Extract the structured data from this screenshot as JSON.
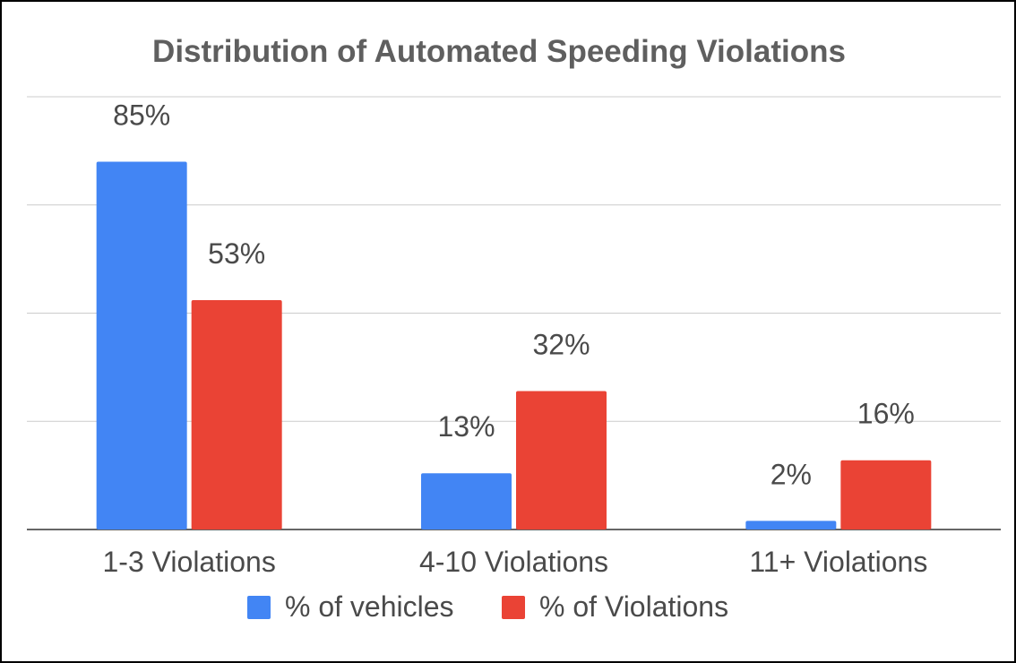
{
  "chart_data": {
    "type": "bar",
    "title": "Distribution of Automated Speeding Violations",
    "xlabel": "",
    "ylabel": "",
    "categories": [
      "1-3 Violations",
      "4-10 Violations",
      "11+ Violations"
    ],
    "series": [
      {
        "name": "% of vehicles",
        "color": "#4285f4",
        "values": [
          85,
          13,
          2
        ],
        "labels": [
          "85%",
          "13%",
          "2%"
        ]
      },
      {
        "name": "% of Violations",
        "color": "#ea4335",
        "values": [
          53,
          32,
          16
        ],
        "labels": [
          "53%",
          "32%",
          "16%"
        ]
      }
    ],
    "ylim": [
      0,
      100
    ],
    "grid": true,
    "y_tick_labels_visible": false,
    "legend_position": "bottom"
  }
}
